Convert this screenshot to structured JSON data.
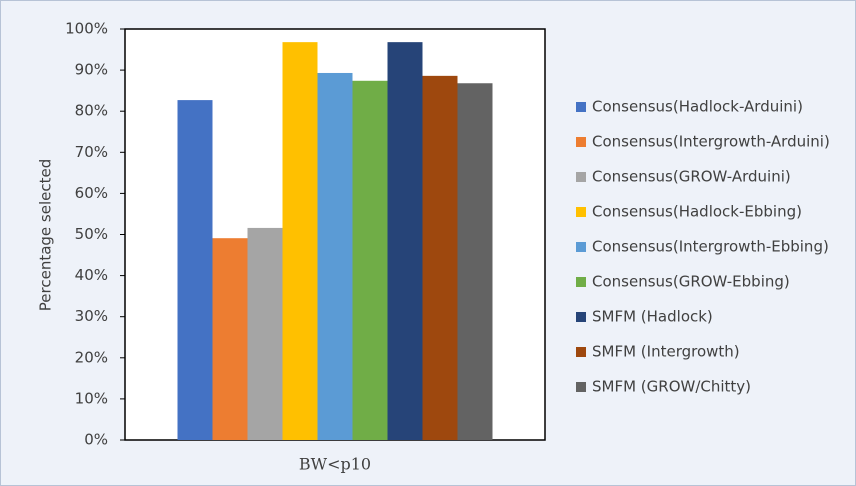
{
  "chart_data": {
    "type": "bar",
    "y_label": "Percentage selected",
    "categories": [
      "BW<p10"
    ],
    "series": [
      {
        "name": "Consensus(Hadlock-Arduini)",
        "color": "#4472c4",
        "values": [
          82.7
        ]
      },
      {
        "name": "Consensus(Intergrowth-Arduini)",
        "color": "#ed7d31",
        "values": [
          49.1
        ]
      },
      {
        "name": "Consensus(GROW-Arduini)",
        "color": "#a5a5a5",
        "values": [
          51.6
        ]
      },
      {
        "name": "Consensus(Hadlock-Ebbing)",
        "color": "#ffc000",
        "values": [
          96.8
        ]
      },
      {
        "name": "Consensus(Intergrowth-Ebbing)",
        "color": "#5b9bd5",
        "values": [
          89.3
        ]
      },
      {
        "name": "Consensus(GROW-Ebbing)",
        "color": "#70ad47",
        "values": [
          87.4
        ]
      },
      {
        "name": "SMFM (Hadlock)",
        "color": "#264478",
        "values": [
          96.8
        ]
      },
      {
        "name": "SMFM (Intergrowth)",
        "color": "#9e480e",
        "values": [
          88.6
        ]
      },
      {
        "name": "SMFM (GROW/Chitty)",
        "color": "#636363",
        "values": [
          86.8
        ]
      }
    ],
    "ylim": [
      0,
      100
    ],
    "yticks": [
      {
        "value": 0,
        "label": "0%"
      },
      {
        "value": 10,
        "label": "10%"
      },
      {
        "value": 20,
        "label": "20%"
      },
      {
        "value": 30,
        "label": "30%"
      },
      {
        "value": 40,
        "label": "40%"
      },
      {
        "value": 50,
        "label": "50%"
      },
      {
        "value": 60,
        "label": "60%"
      },
      {
        "value": 70,
        "label": "70%"
      },
      {
        "value": 80,
        "label": "80%"
      },
      {
        "value": 90,
        "label": "90%"
      },
      {
        "value": 100,
        "label": "100%"
      }
    ],
    "grid": false,
    "legend": "right"
  }
}
